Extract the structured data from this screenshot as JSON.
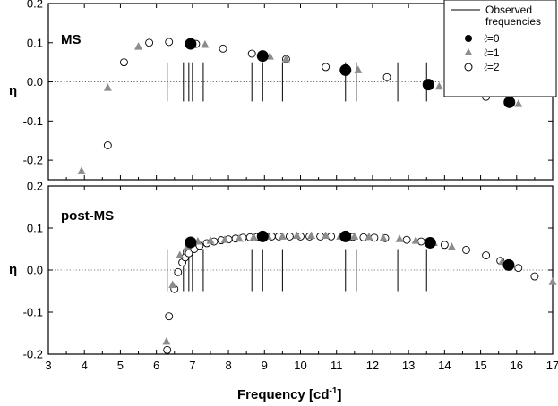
{
  "figure": {
    "xlabel": "Frequency [cd",
    "xlabel_sup": "-1",
    "xlabel_close": "]",
    "ylabel": "η"
  },
  "legend": {
    "observed_line1": "Observed",
    "observed_line2": "frequencies",
    "l0": "ℓ=0",
    "l1": "ℓ=1",
    "l2": "ℓ=2"
  },
  "colors": {
    "l0": "#000000",
    "l1": "#8c8c8c",
    "l2": "#ffffff",
    "zero_line": "#555555"
  },
  "chart_data": [
    {
      "type": "scatter",
      "panel_label": "MS",
      "xlim": [
        3,
        17
      ],
      "ylim": [
        -0.25,
        0.2
      ],
      "x_ticks": [
        3,
        4,
        5,
        6,
        7,
        8,
        9,
        10,
        11,
        12,
        13,
        14,
        15,
        16,
        17
      ],
      "y_ticks": [
        -0.2,
        -0.1,
        0.0,
        0.1,
        0.2
      ],
      "y_tick_labels": [
        "-0.2",
        "-0.1",
        "0.0",
        "0.1",
        "0.2"
      ],
      "series": [
        {
          "name": "ℓ=0",
          "marker": "filled-circle-large",
          "points": [
            [
              6.95,
              0.097
            ],
            [
              8.95,
              0.066
            ],
            [
              11.25,
              0.03
            ],
            [
              13.55,
              -0.007
            ],
            [
              15.8,
              -0.052
            ]
          ]
        },
        {
          "name": "ℓ=1",
          "marker": "triangle",
          "points": [
            [
              3.92,
              -0.228
            ],
            [
              4.65,
              -0.015
            ],
            [
              5.5,
              0.09
            ],
            [
              7.35,
              0.095
            ],
            [
              9.15,
              0.065
            ],
            [
              9.6,
              0.058
            ],
            [
              11.6,
              0.03
            ],
            [
              13.85,
              -0.012
            ],
            [
              16.05,
              -0.056
            ]
          ]
        },
        {
          "name": "ℓ=2",
          "marker": "open-circle",
          "points": [
            [
              4.65,
              -0.162
            ],
            [
              5.1,
              0.05
            ],
            [
              5.8,
              0.1
            ],
            [
              6.35,
              0.102
            ],
            [
              7.1,
              0.097
            ],
            [
              7.85,
              0.085
            ],
            [
              8.65,
              0.072
            ],
            [
              9.6,
              0.058
            ],
            [
              10.7,
              0.038
            ],
            [
              12.4,
              0.012
            ],
            [
              15.15,
              -0.038
            ]
          ]
        }
      ],
      "observed_frequencies": [
        6.3,
        6.75,
        6.9,
        7.0,
        7.3,
        8.65,
        8.95,
        9.5,
        11.25,
        11.55,
        12.7,
        13.5
      ]
    },
    {
      "type": "scatter",
      "panel_label": "post-MS",
      "xlim": [
        3,
        17
      ],
      "ylim": [
        -0.2,
        0.2
      ],
      "x_ticks": [
        3,
        4,
        5,
        6,
        7,
        8,
        9,
        10,
        11,
        12,
        13,
        14,
        15,
        16,
        17
      ],
      "y_ticks": [
        -0.2,
        -0.1,
        0.0,
        0.1,
        0.2
      ],
      "y_tick_labels": [
        "-0.2",
        "-0.1",
        "0.0",
        "0.1",
        "0.2"
      ],
      "series": [
        {
          "name": "ℓ=0",
          "marker": "filled-circle-large",
          "points": [
            [
              6.95,
              0.066
            ],
            [
              8.95,
              0.08
            ],
            [
              11.25,
              0.08
            ],
            [
              13.6,
              0.065
            ],
            [
              15.78,
              0.012
            ]
          ]
        },
        {
          "name": "ℓ=1",
          "marker": "triangle",
          "points": [
            [
              6.28,
              -0.17
            ],
            [
              6.45,
              -0.035
            ],
            [
              6.65,
              0.035
            ],
            [
              6.85,
              0.055
            ],
            [
              7.15,
              0.068
            ],
            [
              7.5,
              0.07
            ],
            [
              7.9,
              0.072
            ],
            [
              8.3,
              0.075
            ],
            [
              8.7,
              0.078
            ],
            [
              9.1,
              0.08
            ],
            [
              9.5,
              0.08
            ],
            [
              9.9,
              0.082
            ],
            [
              10.3,
              0.082
            ],
            [
              10.7,
              0.082
            ],
            [
              11.1,
              0.08
            ],
            [
              11.5,
              0.08
            ],
            [
              11.9,
              0.079
            ],
            [
              12.3,
              0.076
            ],
            [
              12.75,
              0.074
            ],
            [
              13.2,
              0.07
            ],
            [
              13.7,
              0.065
            ],
            [
              14.2,
              0.055
            ],
            [
              15.6,
              0.02
            ],
            [
              17.0,
              -0.028
            ]
          ]
        },
        {
          "name": "ℓ=2",
          "marker": "open-circle",
          "points": [
            [
              6.3,
              -0.19
            ],
            [
              6.35,
              -0.11
            ],
            [
              6.5,
              -0.045
            ],
            [
              6.6,
              -0.005
            ],
            [
              6.72,
              0.018
            ],
            [
              6.8,
              0.03
            ],
            [
              6.9,
              0.04
            ],
            [
              7.05,
              0.05
            ],
            [
              7.2,
              0.058
            ],
            [
              7.4,
              0.064
            ],
            [
              7.6,
              0.068
            ],
            [
              7.8,
              0.071
            ],
            [
              8.0,
              0.073
            ],
            [
              8.2,
              0.075
            ],
            [
              8.4,
              0.077
            ],
            [
              8.6,
              0.078
            ],
            [
              8.8,
              0.079
            ],
            [
              9.2,
              0.08
            ],
            [
              9.4,
              0.08
            ],
            [
              9.7,
              0.08
            ],
            [
              10.0,
              0.08
            ],
            [
              10.25,
              0.08
            ],
            [
              10.55,
              0.08
            ],
            [
              10.85,
              0.08
            ],
            [
              11.45,
              0.079
            ],
            [
              11.75,
              0.078
            ],
            [
              12.05,
              0.077
            ],
            [
              12.35,
              0.076
            ],
            [
              12.95,
              0.072
            ],
            [
              13.35,
              0.068
            ],
            [
              14.0,
              0.06
            ],
            [
              14.6,
              0.048
            ],
            [
              15.15,
              0.035
            ],
            [
              15.55,
              0.022
            ],
            [
              16.05,
              0.005
            ],
            [
              16.5,
              -0.015
            ]
          ]
        }
      ],
      "observed_frequencies": [
        6.3,
        6.75,
        6.9,
        7.0,
        7.3,
        8.65,
        8.95,
        9.5,
        11.25,
        11.55,
        12.7,
        13.5
      ]
    }
  ]
}
